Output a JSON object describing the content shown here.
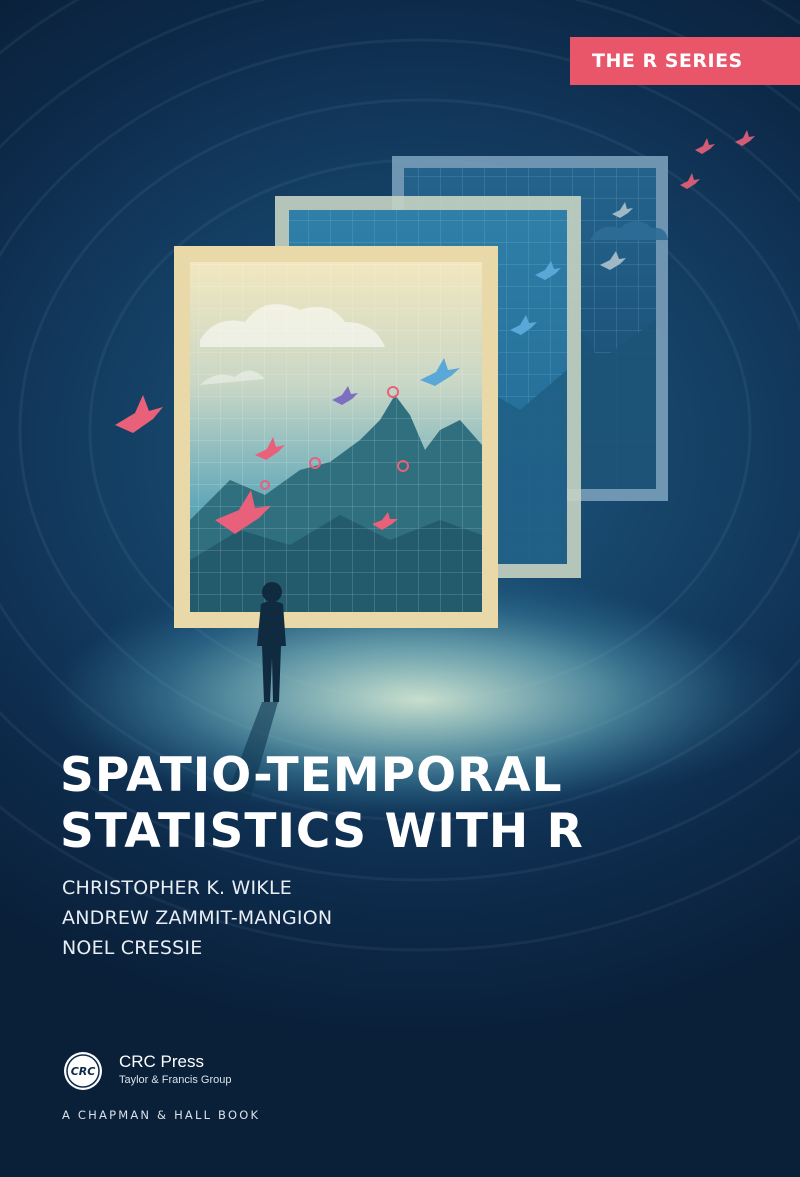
{
  "series": {
    "label": "THE R SERIES"
  },
  "book": {
    "title_line1": "SPATIO-TEMPORAL",
    "title_line2": "STATISTICS WITH R",
    "authors": [
      "CHRISTOPHER K. WIKLE",
      "ANDREW ZAMMIT-MANGION",
      "NOEL CRESSIE"
    ]
  },
  "publisher": {
    "logo_text": "CRC",
    "name": "CRC Press",
    "group": "Taylor & Francis Group",
    "imprint": "A CHAPMAN & HALL BOOK"
  },
  "colors": {
    "badge": "#e9566a",
    "background_dark": "#0d2a4a",
    "frame_front": "#e9d9a8",
    "bird_pink": "#e8607a",
    "bird_blue": "#5aa8d8"
  },
  "icons": {
    "crc_logo": "crc-press-logo",
    "birds": "bird-icon",
    "figure": "person-silhouette-icon"
  }
}
